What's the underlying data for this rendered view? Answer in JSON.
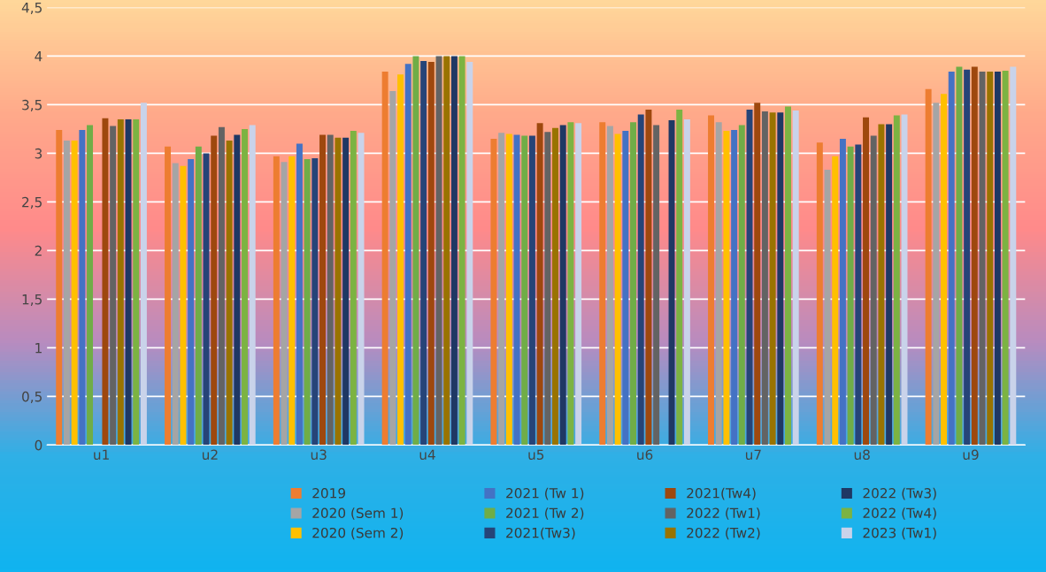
{
  "chart_data": {
    "type": "bar",
    "categories": [
      "u1",
      "u2",
      "u3",
      "u4",
      "u5",
      "u6",
      "u7",
      "u8",
      "u9"
    ],
    "series": [
      {
        "name": "2019",
        "color": "#ed7d31",
        "values": [
          3.24,
          3.07,
          2.97,
          3.84,
          3.15,
          3.32,
          3.39,
          3.11,
          3.66
        ]
      },
      {
        "name": "2020 (Sem 1)",
        "color": "#a5a5a5",
        "values": [
          3.13,
          2.9,
          2.91,
          3.64,
          3.21,
          3.28,
          3.32,
          2.83,
          3.52
        ]
      },
      {
        "name": "2020 (Sem 2)",
        "color": "#ffc000",
        "values": [
          3.13,
          2.87,
          2.97,
          3.81,
          3.2,
          3.2,
          3.23,
          2.97,
          3.61
        ]
      },
      {
        "name": "2021 (Tw 1)",
        "color": "#4472c4",
        "values": [
          3.24,
          2.94,
          3.1,
          3.92,
          3.19,
          3.23,
          3.24,
          3.15,
          3.84
        ]
      },
      {
        "name": "2021 (Tw 2)",
        "color": "#70ad47",
        "values": [
          3.29,
          3.07,
          2.94,
          4.0,
          3.18,
          3.32,
          3.29,
          3.07,
          3.89
        ]
      },
      {
        "name": "2021(Tw3)",
        "color": "#264478",
        "values": [
          null,
          3.0,
          2.95,
          3.95,
          3.18,
          3.4,
          3.45,
          3.09,
          3.86
        ]
      },
      {
        "name": "2021(Tw4)",
        "color": "#9e480e",
        "values": [
          3.36,
          3.18,
          3.19,
          3.94,
          3.31,
          3.45,
          3.52,
          3.37,
          3.89
        ]
      },
      {
        "name": "2022 (Tw1)",
        "color": "#636363",
        "values": [
          3.28,
          3.27,
          3.19,
          4.0,
          3.22,
          3.29,
          3.43,
          3.18,
          3.84
        ]
      },
      {
        "name": "2022 (Tw2)",
        "color": "#997300",
        "values": [
          3.35,
          3.13,
          3.16,
          4.0,
          3.26,
          null,
          3.42,
          3.3,
          3.84
        ]
      },
      {
        "name": "2022 (Tw3)",
        "color": "#1f3864",
        "values": [
          3.35,
          3.19,
          3.16,
          4.0,
          3.29,
          3.34,
          3.42,
          3.3,
          3.84
        ]
      },
      {
        "name": "2022 (Tw4)",
        "color": "#7cb342",
        "values": [
          3.35,
          3.25,
          3.23,
          4.0,
          3.32,
          3.45,
          3.48,
          3.39,
          3.85
        ]
      },
      {
        "name": "2023 (Tw1)",
        "color": "#c9d3ea",
        "values": [
          3.52,
          3.29,
          3.21,
          3.94,
          3.31,
          3.35,
          3.44,
          3.4,
          3.89
        ]
      }
    ],
    "ylim": [
      0,
      4.5
    ],
    "yticks": [
      0,
      {
        "value": 0.5,
        "label": "0,5"
      },
      1,
      {
        "value": 1.5,
        "label": "1,5"
      },
      2,
      {
        "value": 2.5,
        "label": "2,5"
      },
      3,
      {
        "value": 3.5,
        "label": "3,5"
      },
      4,
      {
        "value": 4.5,
        "label": "4,5"
      }
    ],
    "grid": "y",
    "legend": "bottom"
  }
}
